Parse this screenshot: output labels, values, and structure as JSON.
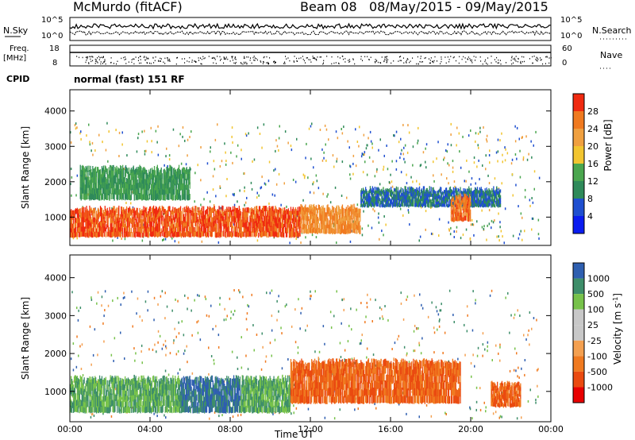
{
  "header": {
    "title": "McMurdo (fitACF)",
    "beam_label": "Beam 08",
    "date_range": "08/May/2015 - 09/May/2015",
    "program": "normal (fast) 151 RF"
  },
  "top_panels": {
    "nsky": {
      "left_label": "N.Sky",
      "right_label": "N.Search",
      "ticks_left": [
        "10^5",
        "10^0"
      ],
      "ticks_right": [
        "10^5",
        "10^0"
      ]
    },
    "freq": {
      "left_label_1": "Freq.",
      "left_label_2": "[MHz]",
      "right_label": "Nave",
      "ticks_left": [
        "18",
        "8"
      ],
      "ticks_right": [
        "60",
        "0"
      ]
    },
    "cpid_label": "CPID"
  },
  "colors": {
    "power": [
      "#0a1cf0",
      "#1f4fd0",
      "#2f8a5a",
      "#4aa64e",
      "#f2c530",
      "#f0a040",
      "#f07a20",
      "#f02a10",
      "#e80000"
    ],
    "velocity": [
      "#e80000",
      "#ea4a10",
      "#f07a20",
      "#f4a050",
      "#c8c8c8",
      "#c8c8c8",
      "#77c24a",
      "#3e8e6a",
      "#2f5fb0",
      "#1f3fc0"
    ]
  },
  "chart_data": [
    {
      "type": "heatmap",
      "name": "power",
      "title": "",
      "xlabel": "Time UT",
      "ylabel": "Slant Range [km]",
      "colorbar_label": "Power [dB]",
      "colorbar_ticks": [
        "4",
        "8",
        "12",
        "16",
        "20",
        "24",
        "28"
      ],
      "colorbar_range": [
        0,
        32
      ],
      "x_ticks": [
        "00:00",
        "04:00",
        "08:00",
        "12:00",
        "16:00",
        "20:00",
        "00:00"
      ],
      "y_ticks": [
        "1000",
        "2000",
        "3000",
        "4000"
      ],
      "xlim_hours": [
        0,
        24
      ],
      "ylim_km": [
        200,
        4600
      ],
      "scatter_regions_hours_km": [
        {
          "t0": 0,
          "t1": 11.5,
          "r0": 450,
          "r1": 1250,
          "level": 28
        },
        {
          "t0": 11.5,
          "t1": 14.5,
          "r0": 550,
          "r1": 1300,
          "level": 24
        },
        {
          "t0": 14.5,
          "t1": 21.5,
          "r0": 1300,
          "r1": 1800,
          "level": 8
        },
        {
          "t0": 19.0,
          "t1": 20.0,
          "r0": 900,
          "r1": 1600,
          "level": 26
        },
        {
          "t0": 0.5,
          "t1": 6.0,
          "r0": 1500,
          "r1": 2400,
          "level": 12
        }
      ]
    },
    {
      "type": "heatmap",
      "name": "velocity",
      "title": "",
      "xlabel": "Time UT",
      "ylabel": "Slant Range [km]",
      "colorbar_label": "Velocity [m s^-1]",
      "colorbar_ticks": [
        "-1000",
        "-500",
        "-100",
        "-25",
        "25",
        "100",
        "500",
        "1000"
      ],
      "x_ticks": [
        "00:00",
        "04:00",
        "08:00",
        "12:00",
        "16:00",
        "20:00",
        "00:00"
      ],
      "y_ticks": [
        "1000",
        "2000",
        "3000",
        "4000"
      ],
      "xlim_hours": [
        0,
        24
      ],
      "ylim_km": [
        200,
        4600
      ],
      "scatter_regions_hours_km": [
        {
          "t0": 0,
          "t1": 5.5,
          "r0": 450,
          "r1": 1350,
          "velocity": 100
        },
        {
          "t0": 5.5,
          "t1": 8.5,
          "r0": 450,
          "r1": 1350,
          "velocity": 500
        },
        {
          "t0": 8.5,
          "t1": 11.0,
          "r0": 450,
          "r1": 1350,
          "velocity": 100
        },
        {
          "t0": 11.0,
          "t1": 19.5,
          "r0": 700,
          "r1": 1800,
          "velocity": -500
        },
        {
          "t0": 21.0,
          "t1": 22.5,
          "r0": 600,
          "r1": 1200,
          "velocity": -500
        }
      ]
    }
  ]
}
